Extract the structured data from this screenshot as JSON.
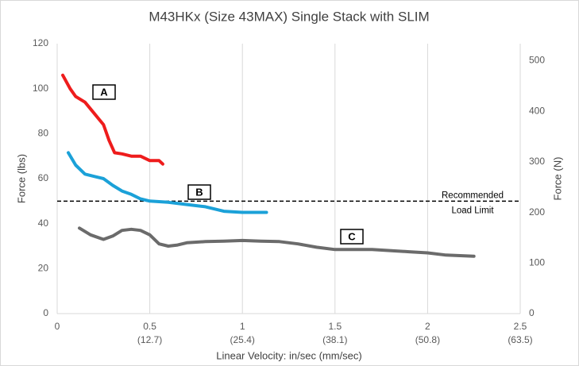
{
  "chart_data": {
    "type": "line",
    "title": "M43HKx (Size 43MAX) Single Stack with SLIM",
    "x_label": "Linear Velocity:  in/sec (mm/sec)",
    "y_label": "Force (lbs)",
    "y2_label": "Force (N)",
    "xlim": [
      0,
      2.5
    ],
    "xticks": [
      0,
      {
        "value": 0.5,
        "label": "0.5",
        "sublabel": "(12.7)"
      },
      {
        "value": 1,
        "label": "1",
        "sublabel": "(25.4)"
      },
      {
        "value": 1.5,
        "label": "1.5",
        "sublabel": "(38.1)"
      },
      {
        "value": 2,
        "label": "2",
        "sublabel": "(50.8)"
      },
      {
        "value": 2.5,
        "label": "2.5",
        "sublabel": "(63.5)"
      }
    ],
    "ylim": [
      0,
      120
    ],
    "yticks": [
      0,
      20,
      40,
      60,
      80,
      100,
      120
    ],
    "y2lim": [
      0,
      533.79
    ],
    "y2ticks": [
      0,
      100,
      200,
      300,
      400,
      500
    ],
    "grid": true,
    "reference_line": {
      "value": 50,
      "label_lines": [
        "Recommended",
        "Load Limit"
      ],
      "color": "#000000"
    },
    "series": [
      {
        "name": "A",
        "color": "#ee1c1c",
        "x": [
          0.03,
          0.07,
          0.1,
          0.15,
          0.2,
          0.25,
          0.28,
          0.31,
          0.35,
          0.4,
          0.45,
          0.5,
          0.55,
          0.57
        ],
        "values": [
          106,
          100,
          96.5,
          94,
          89,
          84,
          77,
          71.5,
          71,
          70,
          70,
          68,
          68,
          66.5
        ]
      },
      {
        "name": "B",
        "color": "#1ba1d8",
        "x": [
          0.06,
          0.1,
          0.15,
          0.2,
          0.25,
          0.3,
          0.35,
          0.4,
          0.45,
          0.5,
          0.6,
          0.7,
          0.8,
          0.9,
          1.0,
          1.13
        ],
        "values": [
          71.5,
          66,
          62,
          61,
          60,
          57,
          54.5,
          53,
          51,
          50,
          49.5,
          48.5,
          47.5,
          45.5,
          45,
          45
        ]
      },
      {
        "name": "C",
        "color": "#6b6b6b",
        "x": [
          0.12,
          0.18,
          0.25,
          0.3,
          0.35,
          0.4,
          0.45,
          0.5,
          0.55,
          0.6,
          0.65,
          0.7,
          0.8,
          0.9,
          1.0,
          1.1,
          1.2,
          1.3,
          1.4,
          1.5,
          1.7,
          1.9,
          2.0,
          2.1,
          2.25
        ],
        "values": [
          38,
          35,
          33,
          34.5,
          37,
          37.5,
          37,
          35,
          31,
          30,
          30.5,
          31.5,
          32,
          32.2,
          32.5,
          32.2,
          32,
          31,
          29.5,
          28.5,
          28.5,
          27.5,
          27,
          26,
          25.5
        ]
      }
    ]
  }
}
